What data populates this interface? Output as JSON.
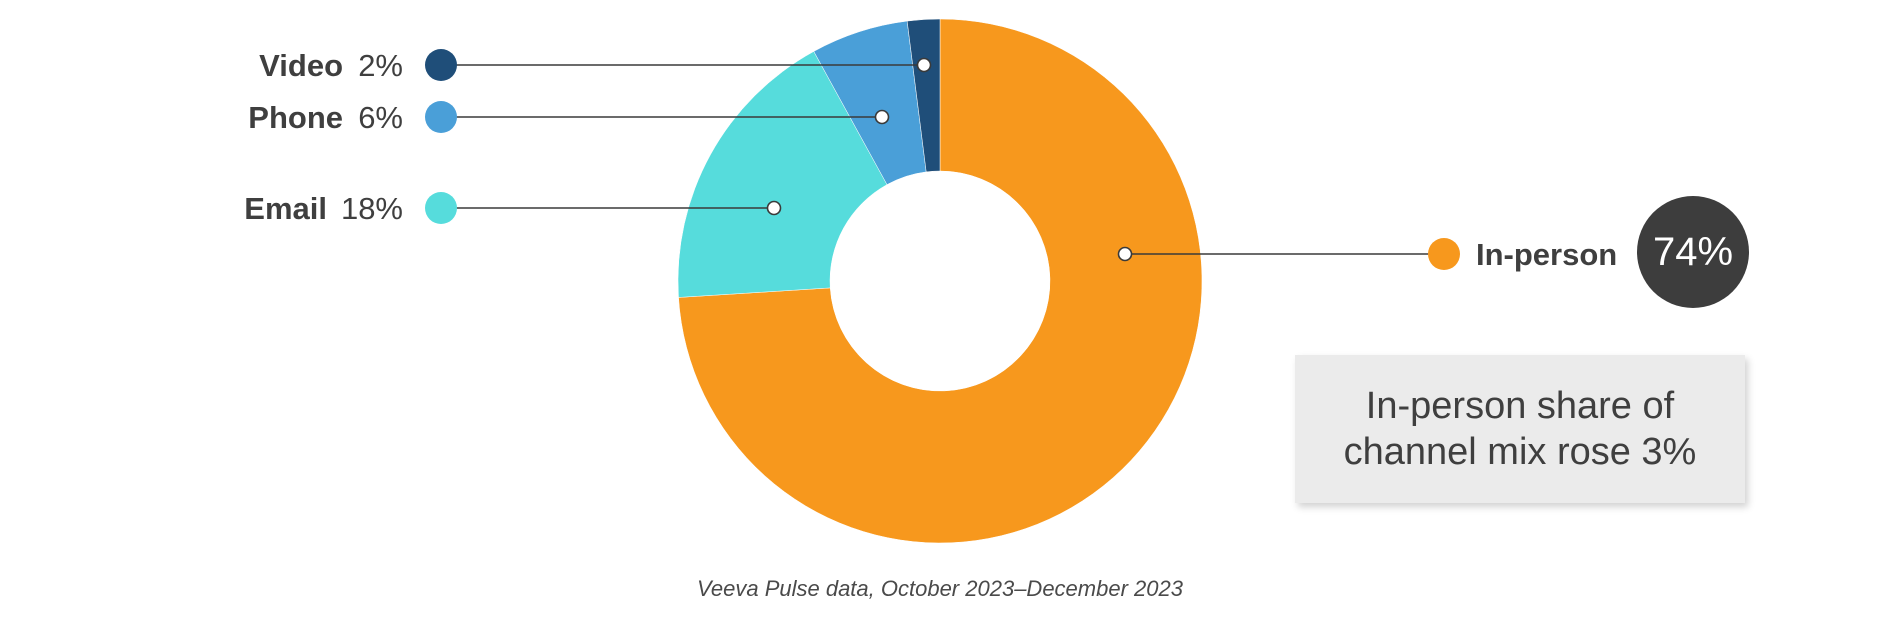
{
  "chart_data": {
    "type": "pie",
    "subtype": "donut",
    "slices": [
      {
        "label": "Video",
        "value": 2,
        "value_label": "2%",
        "color": "#1f4e79"
      },
      {
        "label": "Phone",
        "value": 6,
        "value_label": "6%",
        "color": "#4a9fd8"
      },
      {
        "label": "Email",
        "value": 18,
        "value_label": "18%",
        "color": "#56dcdc"
      },
      {
        "label": "In-person",
        "value": 74,
        "value_label": "74%",
        "color": "#f7981d"
      }
    ],
    "highlight_color": "#3d3d3d",
    "source": "Veeva Pulse data, October 2023–December 2023"
  },
  "callout": {
    "text": "In-person share of channel mix rose 3%"
  }
}
